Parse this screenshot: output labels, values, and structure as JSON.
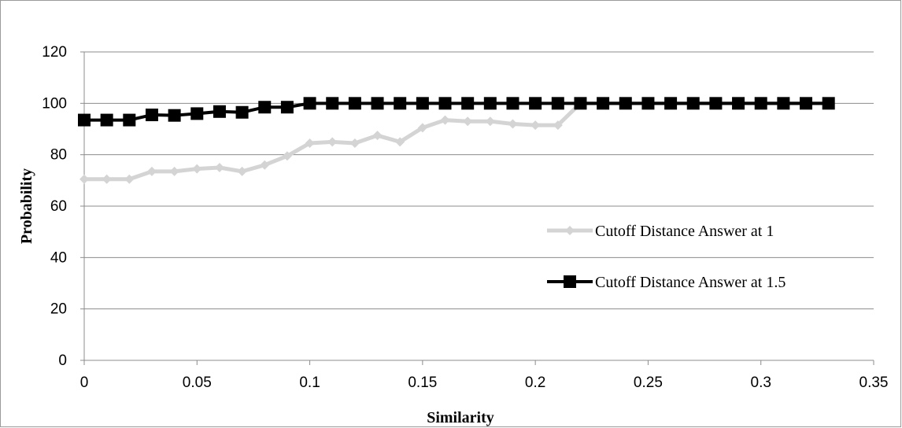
{
  "chart_data": {
    "type": "line",
    "title": "",
    "xlabel": "Similarity",
    "ylabel": "Probability",
    "xlim": [
      0,
      0.35
    ],
    "ylim": [
      0,
      120
    ],
    "x_ticks": [
      "0",
      "0.05",
      "0.1",
      "0.15",
      "0.2",
      "0.25",
      "0.3",
      "0.35"
    ],
    "y_ticks": [
      "0",
      "20",
      "40",
      "60",
      "80",
      "100",
      "120"
    ],
    "grid": "horizontal",
    "legend_position": "right",
    "series": [
      {
        "name": "Cutoff Distance Answer at 1",
        "color": "#d4d4d4",
        "marker": "diamond",
        "x": [
          0,
          0.01,
          0.02,
          0.03,
          0.04,
          0.05,
          0.06,
          0.07,
          0.08,
          0.09,
          0.1,
          0.11,
          0.12,
          0.13,
          0.14,
          0.15,
          0.16,
          0.17,
          0.18,
          0.19,
          0.2,
          0.21,
          0.22,
          0.23,
          0.24,
          0.25,
          0.26,
          0.27,
          0.28,
          0.29,
          0.3,
          0.31,
          0.32,
          0.33
        ],
        "values": [
          70.5,
          70.5,
          70.5,
          73.5,
          73.5,
          74.5,
          75,
          73.5,
          76,
          79.5,
          84.5,
          85,
          84.5,
          87.5,
          85,
          90.5,
          93.5,
          93,
          93,
          92,
          91.5,
          91.5,
          100,
          100,
          100,
          100,
          100,
          100,
          100,
          100,
          100,
          100,
          100,
          100
        ]
      },
      {
        "name": "Cutoff Distance Answer at 1.5",
        "color": "#000000",
        "marker": "square",
        "x": [
          0,
          0.01,
          0.02,
          0.03,
          0.04,
          0.05,
          0.06,
          0.07,
          0.08,
          0.09,
          0.1,
          0.11,
          0.12,
          0.13,
          0.14,
          0.15,
          0.16,
          0.17,
          0.18,
          0.19,
          0.2,
          0.21,
          0.22,
          0.23,
          0.24,
          0.25,
          0.26,
          0.27,
          0.28,
          0.29,
          0.3,
          0.31,
          0.32,
          0.33
        ],
        "values": [
          93.5,
          93.5,
          93.5,
          95.5,
          95.3,
          96,
          96.8,
          96.5,
          98.5,
          98.5,
          100,
          100,
          100,
          100,
          100,
          100,
          100,
          100,
          100,
          100,
          100,
          100,
          100,
          100,
          100,
          100,
          100,
          100,
          100,
          100,
          100,
          100,
          100,
          100
        ]
      }
    ]
  }
}
